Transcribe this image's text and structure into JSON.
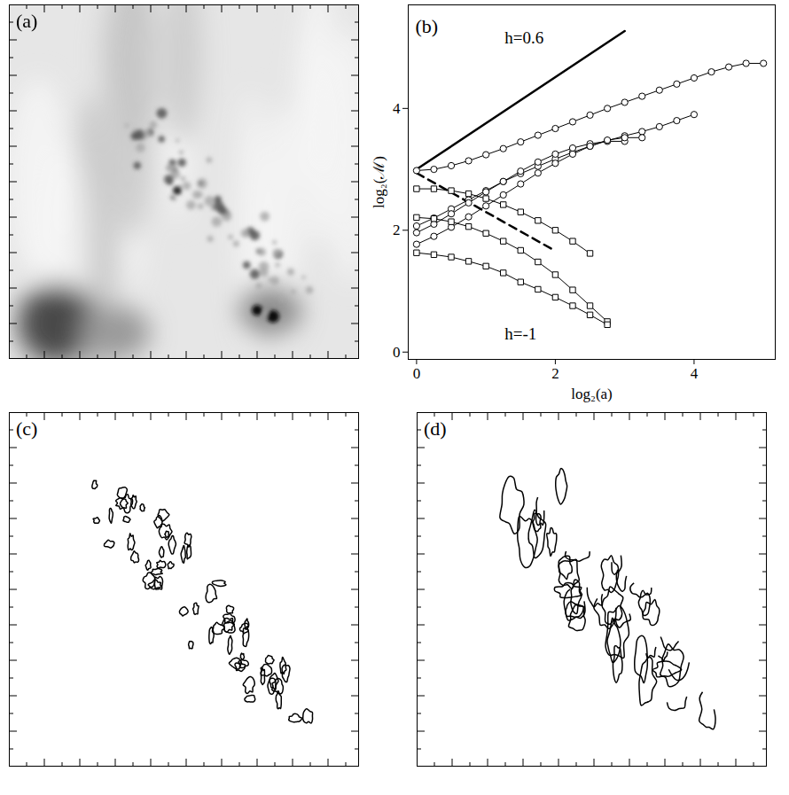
{
  "chart_data": [
    {
      "type": "image",
      "title": "(a)",
      "tick_labels": false
    },
    {
      "type": "scatter",
      "title": "(b)",
      "xlabel": "log₂(a)",
      "ylabel": "log₂(ℳ)",
      "xlim": [
        -0.12,
        5.17
      ],
      "ylim": [
        -0.12,
        5.7
      ],
      "xticks": [
        0,
        2,
        4
      ],
      "yticks": [
        0,
        2,
        4
      ],
      "series": [
        {
          "marker": "circle",
          "color": "#000000",
          "x": [
            0,
            0.25,
            0.5,
            0.75,
            1,
            1.25,
            1.5,
            1.75,
            2,
            2.25,
            2.5,
            2.75,
            3,
            3.25,
            3.5,
            3.75,
            4,
            4.25,
            4.5,
            4.75,
            5
          ],
          "values": [
            2.98,
            3.0,
            3.06,
            3.14,
            3.24,
            3.34,
            3.45,
            3.56,
            3.67,
            3.78,
            3.89,
            4.0,
            4.1,
            4.2,
            4.3,
            4.4,
            4.5,
            4.6,
            4.68,
            4.74,
            4.74
          ]
        },
        {
          "marker": "circle",
          "color": "#000000",
          "x": [
            0,
            0.25,
            0.5,
            0.75,
            1,
            1.25,
            1.5,
            1.75,
            2,
            2.25,
            2.5,
            2.75,
            3,
            3.25,
            3.5,
            3.75,
            4
          ],
          "values": [
            2.07,
            2.2,
            2.35,
            2.5,
            2.65,
            2.8,
            2.93,
            3.05,
            3.17,
            3.28,
            3.38,
            3.47,
            3.55,
            3.62,
            3.7,
            3.8,
            3.9
          ]
        },
        {
          "marker": "circle",
          "color": "#000000",
          "x": [
            0,
            0.25,
            0.5,
            0.75,
            1,
            1.25,
            1.5,
            1.75,
            2,
            2.25,
            2.5,
            2.75,
            3
          ],
          "values": [
            1.96,
            2.1,
            2.27,
            2.45,
            2.63,
            2.8,
            2.97,
            3.12,
            3.25,
            3.35,
            3.42,
            3.46,
            3.46
          ]
        },
        {
          "marker": "circle",
          "color": "#000000",
          "x": [
            0,
            0.25,
            0.5,
            0.75,
            1,
            1.25,
            1.5,
            1.75,
            2,
            2.25,
            2.5,
            2.75,
            3,
            3.25
          ],
          "values": [
            1.77,
            1.9,
            2.05,
            2.22,
            2.4,
            2.58,
            2.76,
            2.94,
            3.1,
            3.25,
            3.38,
            3.48,
            3.52,
            3.52
          ]
        },
        {
          "marker": "square",
          "color": "#000000",
          "x": [
            0,
            0.25,
            0.5,
            0.75,
            1,
            1.25,
            1.5,
            1.75,
            2,
            2.25,
            2.5
          ],
          "values": [
            2.68,
            2.68,
            2.65,
            2.6,
            2.52,
            2.42,
            2.3,
            2.16,
            2.0,
            1.82,
            1.62
          ]
        },
        {
          "marker": "square",
          "color": "#000000",
          "x": [
            0,
            0.25,
            0.5,
            0.75,
            1,
            1.25,
            1.5,
            1.75,
            2,
            2.25,
            2.5,
            2.75
          ],
          "values": [
            2.21,
            2.19,
            2.14,
            2.06,
            1.95,
            1.82,
            1.67,
            1.48,
            1.27,
            1.02,
            0.76,
            0.5
          ]
        },
        {
          "marker": "square",
          "color": "#000000",
          "x": [
            0,
            0.25,
            0.5,
            0.75,
            1,
            1.25,
            1.5,
            1.75,
            2,
            2.25,
            2.5,
            2.75
          ],
          "values": [
            1.63,
            1.6,
            1.56,
            1.49,
            1.41,
            1.3,
            1.15,
            1.03,
            0.9,
            0.76,
            0.61,
            0.45
          ]
        }
      ],
      "lines": [
        {
          "x": [
            0,
            3
          ],
          "values": [
            3.0,
            5.27
          ],
          "line_style": "solid",
          "color": "#000000"
        },
        {
          "x": [
            0,
            2
          ],
          "values": [
            2.94,
            1.66
          ],
          "line_style": "dashed",
          "color": "#000000"
        }
      ],
      "annotations": [
        {
          "text": "h=0.6",
          "x": 1.55,
          "y": 5.15
        },
        {
          "text": "h=-1",
          "x": 1.5,
          "y": 0.3
        }
      ]
    },
    {
      "type": "contour",
      "title": "(c)",
      "tick_labels": false
    },
    {
      "type": "contour",
      "title": "(d)",
      "tick_labels": false
    }
  ]
}
